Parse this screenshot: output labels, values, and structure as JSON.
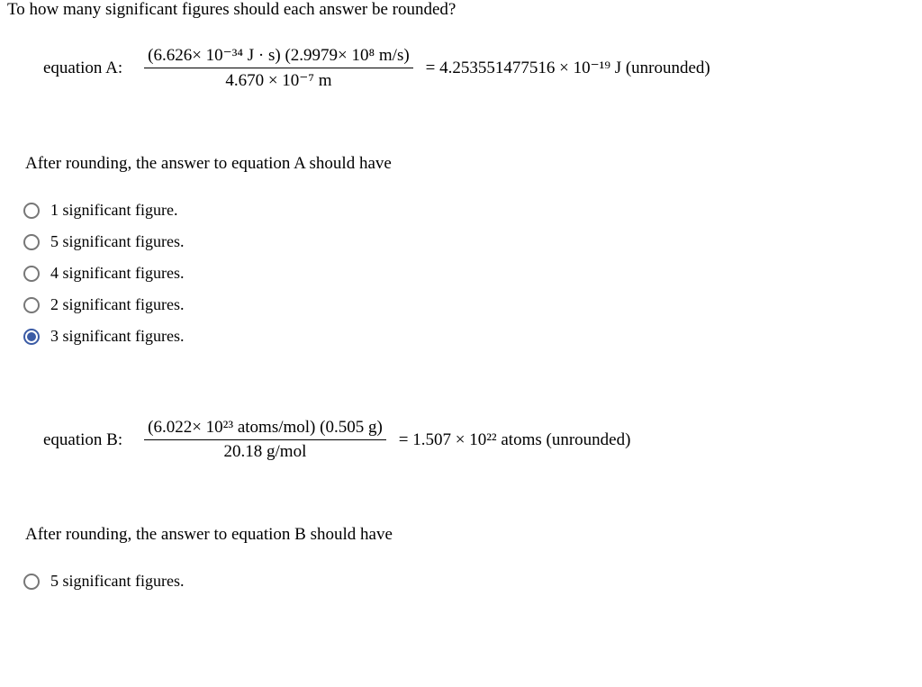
{
  "prompt": "To how many significant figures should each answer be rounded?",
  "equationA": {
    "label": "equation A:",
    "numerator": "(6.626× 10⁻³⁴ J · s) (2.9979× 10⁸ m/s)",
    "denominator": "4.670 × 10⁻⁷ m",
    "result": "= 4.253551477516 × 10⁻¹⁹ J (unrounded)"
  },
  "subpromptA": "After rounding, the answer to equation A should have",
  "optionsA": [
    {
      "label": "1 significant figure.",
      "selected": false
    },
    {
      "label": "5 significant figures.",
      "selected": false
    },
    {
      "label": "4 significant figures.",
      "selected": false
    },
    {
      "label": "2 significant figures.",
      "selected": false
    },
    {
      "label": "3 significant figures.",
      "selected": true
    }
  ],
  "equationB": {
    "label": "equation B:",
    "numerator": "(6.022× 10²³ atoms/mol) (0.505 g)",
    "denominator": "20.18 g/mol",
    "result": "= 1.507 × 10²² atoms (unrounded)"
  },
  "subpromptB": "After rounding, the answer to equation B should have",
  "optionsB": [
    {
      "label": "5 significant figures.",
      "selected": false
    }
  ],
  "colors": {
    "text": "#000000",
    "background": "#ffffff",
    "radio_border": "#777777",
    "radio_selected": "#3b5ba5"
  },
  "typography": {
    "body_font": "Georgia / Times",
    "body_size_pt": 14,
    "prompt_size_pt": 14
  }
}
